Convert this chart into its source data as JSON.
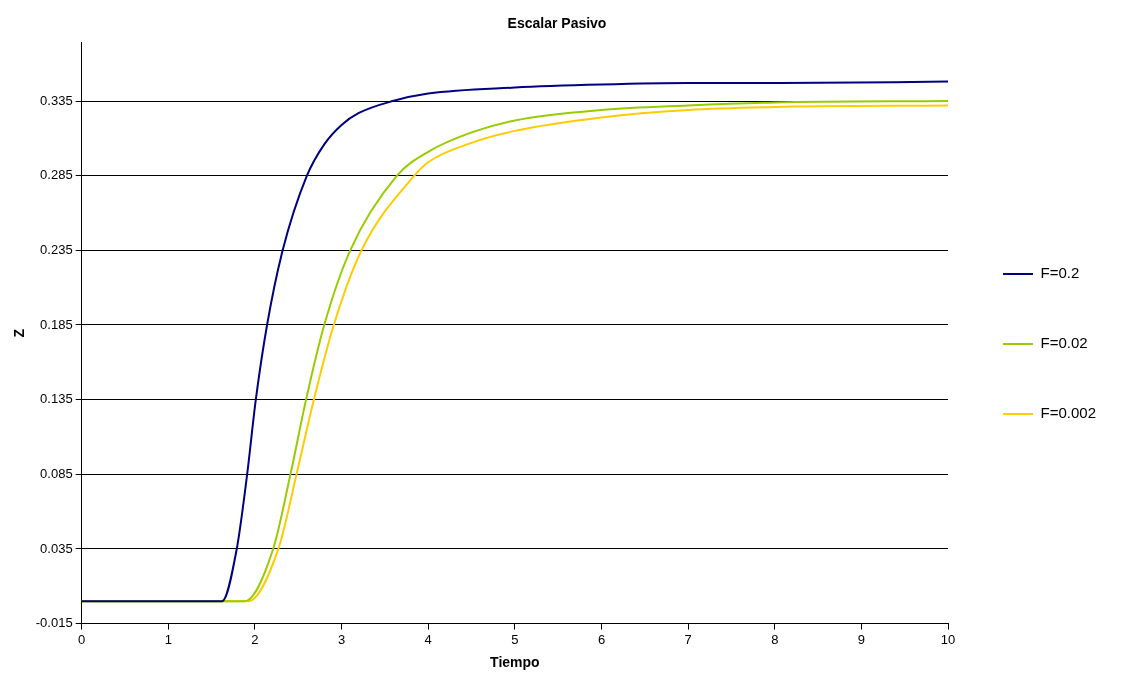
{
  "chart_data": {
    "type": "line",
    "title": "Escalar Pasivo",
    "xlabel": "Tiempo",
    "ylabel": "Z",
    "xlim": [
      0,
      10
    ],
    "xticks": [
      0,
      1,
      2,
      3,
      4,
      5,
      6,
      7,
      8,
      9,
      10
    ],
    "ylim": [
      -0.015,
      0.374
    ],
    "yticks": [
      -0.015,
      0.035,
      0.085,
      0.135,
      0.185,
      0.235,
      0.285,
      0.335
    ],
    "grid": "y",
    "legend": "right",
    "marker": "none",
    "line_style": "solid",
    "series": [
      {
        "name": "F=0.2",
        "color": "#000080",
        "x": [
          0,
          1.62,
          1.79,
          1.91,
          2.01,
          2.14,
          2.32,
          2.6,
          2.8,
          3,
          3.2,
          3.59,
          4,
          5,
          6,
          7,
          8,
          10
        ],
        "values": [
          0,
          0,
          0.035,
          0.085,
          0.135,
          0.185,
          0.235,
          0.285,
          0.306,
          0.319,
          0.327,
          0.335,
          0.34,
          0.344,
          0.346,
          0.347,
          0.347,
          0.348
        ]
      },
      {
        "name": "F=0.02",
        "color": "#99cc00",
        "x": [
          0,
          1.88,
          2.21,
          2.41,
          2.59,
          2.8,
          3.1,
          3.64,
          4,
          4.5,
          5,
          6,
          7,
          8,
          10
        ],
        "values": [
          0,
          0,
          0.035,
          0.085,
          0.135,
          0.185,
          0.235,
          0.285,
          0.301,
          0.314,
          0.322,
          0.329,
          0.332,
          0.334,
          0.335
        ]
      },
      {
        "name": "F=0.002",
        "color": "#ffcc00",
        "x": [
          0,
          1.92,
          2.27,
          2.48,
          2.68,
          2.91,
          3.23,
          3.84,
          4,
          4.5,
          5,
          6,
          7,
          8,
          10
        ],
        "values": [
          0,
          0,
          0.035,
          0.085,
          0.135,
          0.185,
          0.235,
          0.285,
          0.294,
          0.307,
          0.315,
          0.324,
          0.329,
          0.331,
          0.332
        ]
      }
    ]
  }
}
